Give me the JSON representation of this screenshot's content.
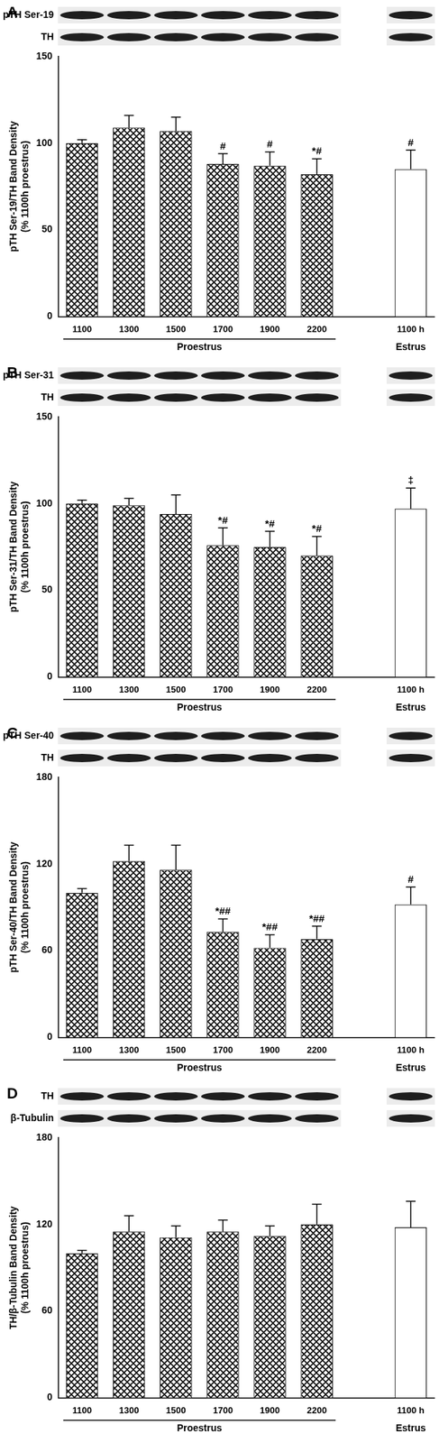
{
  "chart_data": [
    {
      "type": "bar",
      "title": "A",
      "blot_labels": [
        "pTH Ser-19",
        "TH"
      ],
      "ylabel": [
        "pTH Ser-19/TH Band Density",
        "(% 1100h proestrus)"
      ],
      "categories": [
        "1100",
        "1300",
        "1500",
        "1700",
        "1900",
        "2200",
        null,
        "1100 h"
      ],
      "values": [
        100,
        109,
        107,
        88,
        87,
        82,
        null,
        85
      ],
      "errors": [
        2,
        7,
        8,
        6,
        8,
        9,
        null,
        11
      ],
      "annotations": [
        null,
        null,
        null,
        "#",
        "#",
        "*#",
        null,
        "#"
      ],
      "groups": [
        {
          "label": "Proestrus",
          "categories": [
            "1100",
            "1300",
            "1500",
            "1700",
            "1900",
            "2200"
          ]
        },
        {
          "label": "Estrus",
          "categories": [
            "1100 h"
          ]
        }
      ],
      "colors": [
        "#000000",
        "#000000",
        "#000000",
        "#000000",
        "#000000",
        "#000000",
        "#000000",
        "#ffffff"
      ],
      "ylim": [
        0,
        150
      ],
      "yticks": [
        0,
        50,
        100,
        150
      ],
      "grid": false
    },
    {
      "type": "bar",
      "title": "B",
      "blot_labels": [
        "pTH Ser-31",
        "TH"
      ],
      "ylabel": [
        "pTH Ser-31/TH Band Density",
        "(% 1100h proestrus)"
      ],
      "categories": [
        "1100",
        "1300",
        "1500",
        "1700",
        "1900",
        "2200",
        null,
        "1100 h"
      ],
      "values": [
        100,
        99,
        94,
        76,
        75,
        70,
        null,
        97
      ],
      "errors": [
        2,
        4,
        11,
        10,
        9,
        11,
        null,
        12
      ],
      "annotations": [
        null,
        null,
        null,
        "*#",
        "*#",
        "*#",
        null,
        "‡"
      ],
      "groups": [
        {
          "label": "Proestrus",
          "categories": [
            "1100",
            "1300",
            "1500",
            "1700",
            "1900",
            "2200"
          ]
        },
        {
          "label": "Estrus",
          "categories": [
            "1100 h"
          ]
        }
      ],
      "colors": [
        "#000000",
        "#000000",
        "#000000",
        "#000000",
        "#000000",
        "#000000",
        "#000000",
        "#ffffff"
      ],
      "ylim": [
        0,
        150
      ],
      "yticks": [
        0,
        50,
        100,
        150
      ],
      "grid": false
    },
    {
      "type": "bar",
      "title": "C",
      "blot_labels": [
        "pTH Ser-40",
        "TH"
      ],
      "ylabel": [
        "pTH Ser-40/TH Band Density",
        "(% 1100h proestrus)"
      ],
      "categories": [
        "1100",
        "1300",
        "1500",
        "1700",
        "1900",
        "2200",
        null,
        "1100 h"
      ],
      "values": [
        100,
        122,
        116,
        73,
        62,
        68,
        null,
        92
      ],
      "errors": [
        3,
        11,
        17,
        9,
        9,
        9,
        null,
        12
      ],
      "annotations": [
        null,
        null,
        null,
        "*##",
        "*##",
        "*##",
        null,
        "#"
      ],
      "groups": [
        {
          "label": "Proestrus",
          "categories": [
            "1100",
            "1300",
            "1500",
            "1700",
            "1900",
            "2200"
          ]
        },
        {
          "label": "Estrus",
          "categories": [
            "1100 h"
          ]
        }
      ],
      "colors": [
        "#000000",
        "#000000",
        "#000000",
        "#000000",
        "#000000",
        "#000000",
        "#000000",
        "#ffffff"
      ],
      "ylim": [
        0,
        180
      ],
      "yticks": [
        0,
        60,
        120,
        180
      ],
      "grid": false
    },
    {
      "type": "bar",
      "title": "D",
      "blot_labels": [
        "TH",
        "β-Tubulin"
      ],
      "ylabel": [
        "TH/β-Tubulin Band Density",
        "(% 1100h proestrus)"
      ],
      "categories": [
        "1100",
        "1300",
        "1500",
        "1700",
        "1900",
        "2200",
        null,
        "1100 h"
      ],
      "values": [
        100,
        115,
        111,
        115,
        112,
        120,
        null,
        118
      ],
      "errors": [
        2,
        11,
        8,
        8,
        7,
        14,
        null,
        18
      ],
      "annotations": [
        null,
        null,
        null,
        null,
        null,
        null,
        null,
        null
      ],
      "groups": [
        {
          "label": "Proestrus",
          "categories": [
            "1100",
            "1300",
            "1500",
            "1700",
            "1900",
            "2200"
          ]
        },
        {
          "label": "Estrus",
          "categories": [
            "1100 h"
          ]
        }
      ],
      "colors": [
        "#000000",
        "#000000",
        "#000000",
        "#000000",
        "#000000",
        "#000000",
        "#000000",
        "#ffffff"
      ],
      "ylim": [
        0,
        180
      ],
      "yticks": [
        0,
        60,
        120,
        180
      ],
      "grid": false
    }
  ]
}
